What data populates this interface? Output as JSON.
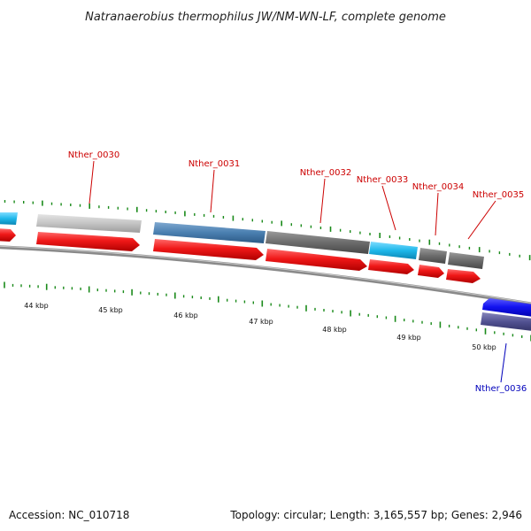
{
  "title": "Natranaerobius thermophilus JW/NM-WN-LF, complete genome",
  "accession": "Accession: NC_010718",
  "summary": "Topology: circular; Length: 3,165,557 bp; Genes: 2,946",
  "axis_labels": [
    "44 kbp",
    "45 kbp",
    "46 kbp",
    "47 kbp",
    "48 kbp",
    "49 kbp",
    "50 kbp"
  ],
  "gene_labels": [
    "Nther_0030",
    "Nther_0031",
    "Nther_0032",
    "Nther_0033",
    "Nther_0034",
    "Nther_0035",
    "Nther_0036"
  ],
  "colors": {
    "forward_gene": "#ee1111",
    "reverse_gene": "#1111ee",
    "forward_label": "#cc0000",
    "reverse_label": "#0000bb",
    "tick_mark": "#1a8a1a",
    "backbone": "#8a8a8a",
    "cds_light_gray": "#c4c4c4",
    "cds_steel_blue": "#4a7fb0",
    "cds_dark_gray": "#6c6c6c",
    "cds_cyan": "#1fb8ea",
    "cds_slate": "#505090"
  }
}
